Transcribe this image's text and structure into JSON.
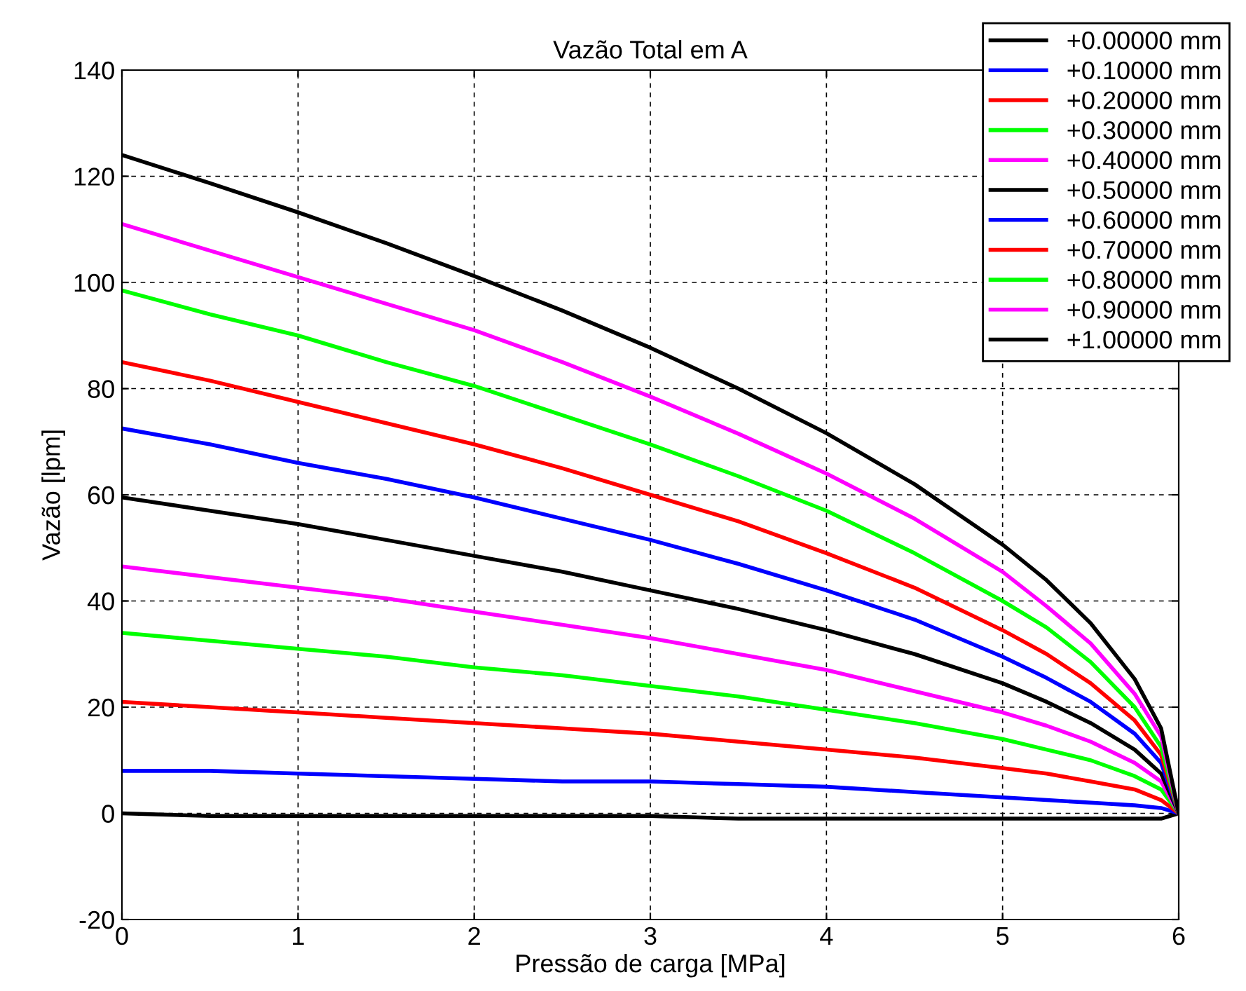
{
  "chart_data": {
    "type": "line",
    "title": "Vazão Total em A",
    "xlabel": "Pressão de carga [MPa]",
    "ylabel": "Vazão [lpm]",
    "x": [
      0,
      0.5,
      1,
      1.5,
      2,
      2.5,
      3,
      3.5,
      4,
      4.5,
      5,
      5.25,
      5.5,
      5.75,
      5.9,
      6
    ],
    "series": [
      {
        "name": "+0.00000 mm",
        "color": "#000000",
        "values": [
          0,
          -0.5,
          -0.5,
          -0.5,
          -0.5,
          -0.5,
          -0.5,
          -1,
          -1,
          -1,
          -1,
          -1,
          -1,
          -1,
          -1,
          0
        ]
      },
      {
        "name": "+0.10000 mm",
        "color": "#0000ff",
        "values": [
          8,
          8,
          7.5,
          7,
          6.5,
          6,
          6,
          5.5,
          5,
          4,
          3,
          2.5,
          2,
          1.5,
          1,
          0
        ]
      },
      {
        "name": "+0.20000 mm",
        "color": "#ff0000",
        "values": [
          21,
          20,
          19,
          18,
          17,
          16,
          15,
          13.5,
          12,
          10.5,
          8.5,
          7.5,
          6,
          4.5,
          2.5,
          0
        ]
      },
      {
        "name": "+0.30000 mm",
        "color": "#00ff00",
        "values": [
          34,
          32.5,
          31,
          29.5,
          27.5,
          26,
          24,
          22,
          19.5,
          17,
          14,
          12,
          10,
          7,
          4.5,
          0
        ]
      },
      {
        "name": "+0.40000 mm",
        "color": "#ff00ff",
        "values": [
          46.5,
          44.5,
          42.5,
          40.5,
          38,
          35.5,
          33,
          30,
          27,
          23,
          19,
          16.5,
          13.5,
          9.5,
          6,
          0
        ]
      },
      {
        "name": "+0.50000 mm",
        "color": "#000000",
        "values": [
          59.5,
          57,
          54.5,
          51.5,
          48.5,
          45.5,
          42,
          38.5,
          34.5,
          30,
          24.5,
          21,
          17,
          12,
          7.5,
          0
        ]
      },
      {
        "name": "+0.60000 mm",
        "color": "#0000ff",
        "values": [
          72.5,
          69.5,
          66,
          63,
          59.5,
          55.5,
          51.5,
          47,
          42,
          36.5,
          29.5,
          25.5,
          21,
          15,
          9.5,
          0
        ]
      },
      {
        "name": "+0.70000 mm",
        "color": "#ff0000",
        "values": [
          85,
          81.5,
          77.5,
          73.5,
          69.5,
          65,
          60,
          55,
          49,
          42.5,
          34.5,
          30,
          24.5,
          17.5,
          11,
          0
        ]
      },
      {
        "name": "+0.80000 mm",
        "color": "#00ff00",
        "values": [
          98.5,
          94,
          90,
          85,
          80.5,
          75,
          69.5,
          63.5,
          57,
          49,
          40,
          35,
          28.5,
          20,
          12.5,
          0
        ]
      },
      {
        "name": "+0.90000 mm",
        "color": "#ff00ff",
        "values": [
          111,
          106,
          101,
          96,
          91,
          85,
          78.5,
          71.5,
          64,
          55.5,
          45.5,
          39,
          32,
          22.5,
          14.5,
          0
        ]
      },
      {
        "name": "+1.00000 mm",
        "color": "#000000",
        "values": [
          124,
          118.7,
          113.2,
          107.4,
          101.2,
          94.7,
          87.7,
          80,
          71.6,
          62,
          50.6,
          43.9,
          35.8,
          25.3,
          16,
          0
        ]
      }
    ],
    "xlim": [
      0,
      6
    ],
    "xticks": [
      0,
      1,
      2,
      3,
      4,
      5,
      6
    ],
    "ylim": [
      -20,
      140
    ],
    "yticks": [
      -20,
      0,
      20,
      40,
      60,
      80,
      100,
      120,
      140
    ],
    "grid": true,
    "legend": "top right",
    "line_style": "solid",
    "marker": "none"
  }
}
